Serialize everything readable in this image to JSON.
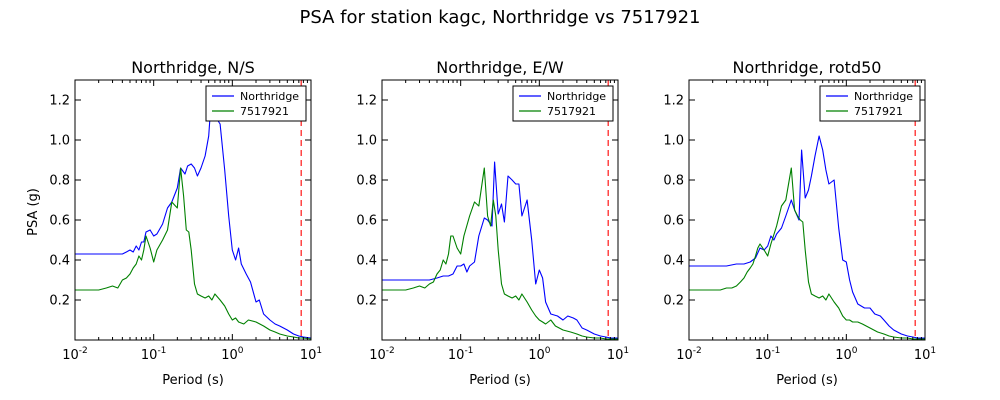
{
  "figure": {
    "suptitle": "PSA for station kagc, Northridge vs 7517921",
    "ylabel": "PSA (g)",
    "xlabel": "Period (s)"
  },
  "colors": {
    "series1": "#0000ff",
    "series2": "#008000",
    "vline": "#ff0000"
  },
  "chart_data": [
    {
      "type": "line",
      "title": "Northridge, N/S",
      "xlabel": "Period (s)",
      "ylabel": "PSA (g)",
      "xscale": "log",
      "xlim": [
        0.01,
        10
      ],
      "ylim": [
        0,
        1.3
      ],
      "xticks": [
        {
          "base": "10",
          "exp": "-2"
        },
        {
          "base": "10",
          "exp": "-1"
        },
        {
          "base": "10",
          "exp": "0"
        },
        {
          "base": "10",
          "exp": "1"
        }
      ],
      "yticks": [
        "0.2",
        "0.4",
        "0.6",
        "0.8",
        "1.0",
        "1.2"
      ],
      "legend": "top-right",
      "vline_x": 7.5,
      "series": [
        {
          "name": "Northridge",
          "color": "#0000ff",
          "x": [
            0.01,
            0.02,
            0.03,
            0.04,
            0.045,
            0.05,
            0.055,
            0.06,
            0.065,
            0.07,
            0.075,
            0.08,
            0.09,
            0.1,
            0.11,
            0.13,
            0.15,
            0.17,
            0.2,
            0.22,
            0.25,
            0.27,
            0.3,
            0.33,
            0.36,
            0.4,
            0.45,
            0.5,
            0.55,
            0.6,
            0.7,
            0.8,
            0.9,
            1.0,
            1.1,
            1.2,
            1.3,
            1.5,
            1.7,
            2.0,
            2.2,
            2.5,
            3.0,
            3.5,
            4.0,
            5.0,
            6.0,
            7.0,
            8.0,
            10.0
          ],
          "y": [
            0.43,
            0.43,
            0.43,
            0.43,
            0.44,
            0.45,
            0.44,
            0.47,
            0.45,
            0.49,
            0.49,
            0.54,
            0.55,
            0.52,
            0.53,
            0.58,
            0.66,
            0.69,
            0.76,
            0.86,
            0.83,
            0.87,
            0.88,
            0.86,
            0.82,
            0.86,
            0.92,
            1.02,
            1.25,
            1.12,
            1.08,
            0.85,
            0.62,
            0.45,
            0.4,
            0.46,
            0.38,
            0.33,
            0.29,
            0.19,
            0.2,
            0.13,
            0.1,
            0.08,
            0.07,
            0.05,
            0.03,
            0.02,
            0.015,
            0.01
          ]
        },
        {
          "name": "7517921",
          "color": "#008000",
          "x": [
            0.01,
            0.02,
            0.025,
            0.03,
            0.035,
            0.04,
            0.045,
            0.05,
            0.055,
            0.06,
            0.065,
            0.07,
            0.075,
            0.08,
            0.09,
            0.1,
            0.11,
            0.13,
            0.15,
            0.17,
            0.2,
            0.22,
            0.24,
            0.26,
            0.28,
            0.3,
            0.33,
            0.36,
            0.4,
            0.45,
            0.5,
            0.55,
            0.6,
            0.7,
            0.8,
            0.9,
            1.0,
            1.1,
            1.2,
            1.4,
            1.6,
            2.0,
            2.5,
            3.0,
            3.5,
            4.0,
            5.0,
            6.0,
            7.0,
            8.0,
            10.0
          ],
          "y": [
            0.25,
            0.25,
            0.26,
            0.27,
            0.26,
            0.3,
            0.31,
            0.33,
            0.36,
            0.38,
            0.42,
            0.4,
            0.45,
            0.52,
            0.46,
            0.39,
            0.45,
            0.5,
            0.55,
            0.69,
            0.66,
            0.86,
            0.72,
            0.55,
            0.54,
            0.45,
            0.28,
            0.23,
            0.22,
            0.21,
            0.22,
            0.2,
            0.23,
            0.2,
            0.17,
            0.13,
            0.1,
            0.11,
            0.09,
            0.08,
            0.1,
            0.09,
            0.07,
            0.05,
            0.04,
            0.03,
            0.02,
            0.015,
            0.01,
            0.01,
            0.005
          ]
        }
      ]
    },
    {
      "type": "line",
      "title": "Northridge, E/W",
      "xlabel": "Period (s)",
      "xscale": "log",
      "xlim": [
        0.01,
        10
      ],
      "ylim": [
        0,
        1.3
      ],
      "xticks": [
        {
          "base": "10",
          "exp": "-2"
        },
        {
          "base": "10",
          "exp": "-1"
        },
        {
          "base": "10",
          "exp": "0"
        },
        {
          "base": "10",
          "exp": "1"
        }
      ],
      "yticks": [
        "0.2",
        "0.4",
        "0.6",
        "0.8",
        "1.0",
        "1.2"
      ],
      "legend": "top-right",
      "vline_x": 7.5,
      "series": [
        {
          "name": "Northridge",
          "color": "#0000ff",
          "x": [
            0.01,
            0.02,
            0.03,
            0.04,
            0.05,
            0.06,
            0.07,
            0.08,
            0.09,
            0.1,
            0.11,
            0.12,
            0.13,
            0.15,
            0.17,
            0.2,
            0.22,
            0.25,
            0.27,
            0.3,
            0.33,
            0.36,
            0.4,
            0.45,
            0.5,
            0.55,
            0.6,
            0.7,
            0.8,
            0.9,
            1.0,
            1.1,
            1.2,
            1.4,
            1.7,
            2.0,
            2.3,
            2.7,
            3.0,
            3.5,
            4.0,
            5.0,
            6.0,
            7.0,
            8.0,
            10.0
          ],
          "y": [
            0.3,
            0.3,
            0.3,
            0.3,
            0.31,
            0.32,
            0.32,
            0.33,
            0.37,
            0.37,
            0.38,
            0.34,
            0.37,
            0.39,
            0.52,
            0.61,
            0.6,
            0.57,
            0.89,
            0.63,
            0.68,
            0.59,
            0.82,
            0.8,
            0.78,
            0.78,
            0.62,
            0.7,
            0.5,
            0.28,
            0.35,
            0.31,
            0.19,
            0.13,
            0.12,
            0.1,
            0.12,
            0.11,
            0.1,
            0.06,
            0.05,
            0.03,
            0.02,
            0.015,
            0.01,
            0.01
          ]
        },
        {
          "name": "7517921",
          "color": "#008000",
          "x": [
            0.01,
            0.02,
            0.025,
            0.03,
            0.035,
            0.04,
            0.045,
            0.05,
            0.055,
            0.06,
            0.065,
            0.07,
            0.075,
            0.08,
            0.09,
            0.1,
            0.11,
            0.13,
            0.15,
            0.17,
            0.2,
            0.22,
            0.24,
            0.26,
            0.28,
            0.3,
            0.33,
            0.36,
            0.4,
            0.45,
            0.5,
            0.55,
            0.6,
            0.7,
            0.8,
            0.9,
            1.0,
            1.1,
            1.2,
            1.4,
            1.6,
            2.0,
            2.5,
            3.0,
            3.5,
            4.0,
            5.0,
            6.0,
            7.0,
            8.0,
            10.0
          ],
          "y": [
            0.25,
            0.25,
            0.26,
            0.27,
            0.26,
            0.28,
            0.29,
            0.33,
            0.35,
            0.4,
            0.38,
            0.43,
            0.52,
            0.52,
            0.46,
            0.43,
            0.52,
            0.62,
            0.69,
            0.67,
            0.86,
            0.62,
            0.57,
            0.7,
            0.62,
            0.45,
            0.28,
            0.23,
            0.22,
            0.21,
            0.22,
            0.2,
            0.23,
            0.19,
            0.15,
            0.12,
            0.1,
            0.09,
            0.08,
            0.1,
            0.07,
            0.05,
            0.04,
            0.03,
            0.02,
            0.015,
            0.01,
            0.01,
            0.005,
            0.005,
            0.005
          ]
        }
      ]
    },
    {
      "type": "line",
      "title": "Northridge, rotd50",
      "xlabel": "Period (s)",
      "xscale": "log",
      "xlim": [
        0.01,
        10
      ],
      "ylim": [
        0,
        1.3
      ],
      "xticks": [
        {
          "base": "10",
          "exp": "-2"
        },
        {
          "base": "10",
          "exp": "-1"
        },
        {
          "base": "10",
          "exp": "0"
        },
        {
          "base": "10",
          "exp": "1"
        }
      ],
      "yticks": [
        "0.2",
        "0.4",
        "0.6",
        "0.8",
        "1.0",
        "1.2"
      ],
      "legend": "top-right",
      "vline_x": 7.5,
      "series": [
        {
          "name": "Northridge",
          "color": "#0000ff",
          "x": [
            0.01,
            0.02,
            0.03,
            0.04,
            0.05,
            0.06,
            0.07,
            0.08,
            0.09,
            0.1,
            0.11,
            0.12,
            0.13,
            0.15,
            0.17,
            0.2,
            0.22,
            0.25,
            0.27,
            0.3,
            0.33,
            0.36,
            0.4,
            0.45,
            0.5,
            0.55,
            0.6,
            0.7,
            0.8,
            0.9,
            1.0,
            1.1,
            1.2,
            1.4,
            1.7,
            2.0,
            2.3,
            2.7,
            3.0,
            3.5,
            4.0,
            5.0,
            6.0,
            7.0,
            8.0,
            10.0
          ],
          "y": [
            0.37,
            0.37,
            0.37,
            0.38,
            0.38,
            0.39,
            0.41,
            0.46,
            0.45,
            0.47,
            0.52,
            0.5,
            0.53,
            0.56,
            0.62,
            0.7,
            0.65,
            0.6,
            0.95,
            0.71,
            0.75,
            0.82,
            0.92,
            1.02,
            0.95,
            0.85,
            0.78,
            0.8,
            0.56,
            0.4,
            0.39,
            0.3,
            0.24,
            0.18,
            0.16,
            0.16,
            0.13,
            0.12,
            0.1,
            0.07,
            0.05,
            0.03,
            0.02,
            0.015,
            0.01,
            0.01
          ]
        },
        {
          "name": "7517921",
          "color": "#008000",
          "x": [
            0.01,
            0.02,
            0.025,
            0.03,
            0.035,
            0.04,
            0.045,
            0.05,
            0.055,
            0.06,
            0.065,
            0.07,
            0.075,
            0.08,
            0.09,
            0.1,
            0.11,
            0.13,
            0.15,
            0.17,
            0.2,
            0.22,
            0.24,
            0.26,
            0.28,
            0.3,
            0.33,
            0.36,
            0.4,
            0.45,
            0.5,
            0.55,
            0.6,
            0.7,
            0.8,
            0.9,
            1.0,
            1.1,
            1.2,
            1.4,
            1.6,
            2.0,
            2.5,
            3.0,
            3.5,
            4.0,
            5.0,
            6.0,
            7.0,
            8.0,
            10.0
          ],
          "y": [
            0.25,
            0.25,
            0.25,
            0.26,
            0.26,
            0.27,
            0.29,
            0.31,
            0.34,
            0.36,
            0.38,
            0.42,
            0.46,
            0.48,
            0.45,
            0.42,
            0.48,
            0.57,
            0.67,
            0.7,
            0.86,
            0.65,
            0.62,
            0.6,
            0.59,
            0.45,
            0.29,
            0.23,
            0.22,
            0.21,
            0.22,
            0.2,
            0.23,
            0.19,
            0.16,
            0.12,
            0.1,
            0.1,
            0.09,
            0.09,
            0.08,
            0.06,
            0.04,
            0.03,
            0.02,
            0.015,
            0.01,
            0.01,
            0.005,
            0.005,
            0.005
          ]
        }
      ]
    }
  ]
}
